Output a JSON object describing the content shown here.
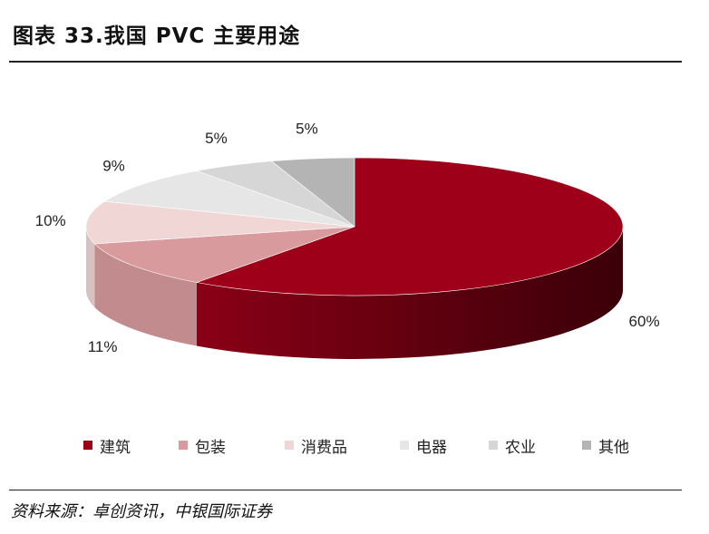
{
  "title": "图表 33.我国 PVC 主要用途",
  "source": "资料来源：卓创资讯，中银国际证券",
  "chart_data": {
    "type": "pie",
    "style": "3d",
    "slices": [
      {
        "label": "建筑",
        "value": 60,
        "text": "60%",
        "color": "#9e0019"
      },
      {
        "label": "包装",
        "value": 11,
        "text": "11%",
        "color": "#d89a9d"
      },
      {
        "label": "消费品",
        "value": 10,
        "text": "10%",
        "color": "#f1d6d6"
      },
      {
        "label": "电器",
        "value": 9,
        "text": "9%",
        "color": "#e6e6e6"
      },
      {
        "label": "农业",
        "value": 5,
        "text": "5%",
        "color": "#d6d6d6"
      },
      {
        "label": "其他",
        "value": 5,
        "text": "5%",
        "color": "#b4b4b4"
      }
    ],
    "legend_position": "bottom"
  }
}
